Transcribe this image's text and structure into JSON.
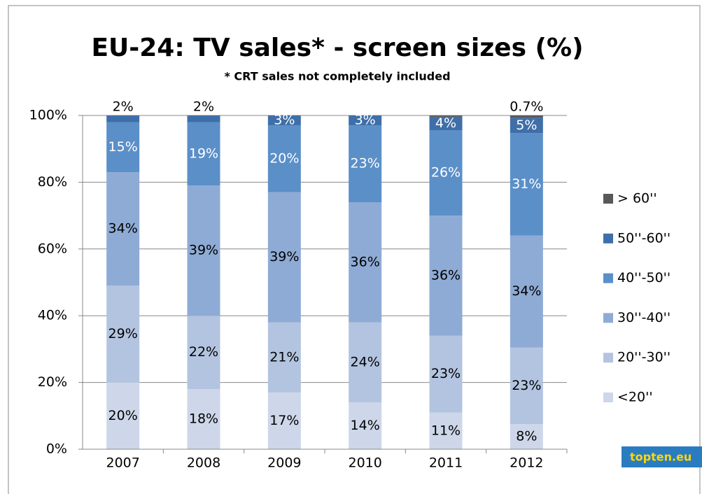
{
  "chart_data": {
    "type": "stacked_bar",
    "title": "EU-24: TV sales* - screen sizes (%)",
    "subtitle": "* CRT sales not completely included",
    "categories": [
      "2007",
      "2008",
      "2009",
      "2010",
      "2011",
      "2012"
    ],
    "series": [
      {
        "name": "<20''",
        "color": "#cdd7e9",
        "values": [
          20,
          18,
          17,
          14,
          11,
          7.5
        ],
        "value_labels": [
          "20%",
          "18%",
          "17%",
          "14%",
          "11%",
          "8%"
        ]
      },
      {
        "name": "20''-30''",
        "color": "#b3c4e0",
        "values": [
          29,
          22,
          21,
          24,
          23,
          23
        ],
        "value_labels": [
          "29%",
          "22%",
          "21%",
          "24%",
          "23%",
          "23%"
        ]
      },
      {
        "name": "30''-40''",
        "color": "#8eabd5",
        "values": [
          34,
          39,
          39,
          36,
          36,
          33.5
        ],
        "value_labels": [
          "34%",
          "39%",
          "39%",
          "36%",
          "36%",
          "34%"
        ]
      },
      {
        "name": "40''-50''",
        "color": "#5b8fc8",
        "values": [
          15,
          19,
          20,
          23,
          25.6,
          30.7
        ],
        "value_labels": [
          "15%",
          "19%",
          "20%",
          "23%",
          "26%",
          "31%"
        ]
      },
      {
        "name": "50''-60''",
        "color": "#3f6fa8",
        "values": [
          2,
          2,
          3,
          3,
          4,
          4.6
        ],
        "value_labels": [
          "2%",
          "2%",
          "3%",
          "3%",
          "4%",
          "5%"
        ]
      },
      {
        "name": "> 60''",
        "color": "#595959",
        "values": [
          0,
          0,
          0,
          0,
          0.4,
          0.7
        ],
        "value_labels": [
          null,
          null,
          null,
          null,
          null,
          "0.7%"
        ]
      }
    ],
    "ylim": [
      0,
      100
    ],
    "yticks": [
      {
        "value": 0,
        "label": "0%"
      },
      {
        "value": 20,
        "label": "20%"
      },
      {
        "value": 40,
        "label": "40%"
      },
      {
        "value": 60,
        "label": "60%"
      },
      {
        "value": 80,
        "label": "80%"
      },
      {
        "value": 100,
        "label": "100%"
      }
    ],
    "grid": true,
    "legend": "right",
    "logo": "topten.eu"
  }
}
